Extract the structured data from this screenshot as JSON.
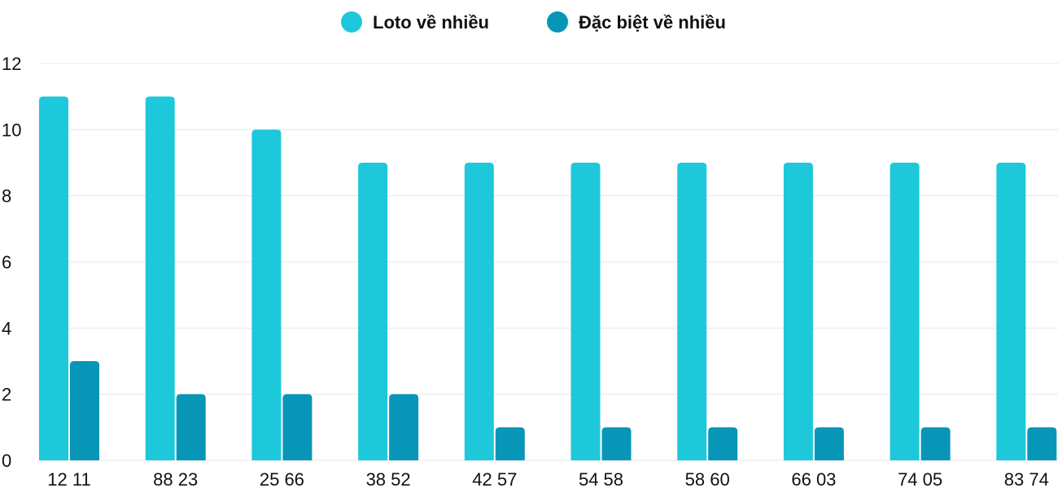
{
  "chart_data": {
    "type": "bar",
    "title": "",
    "xlabel": "",
    "ylabel": "",
    "categories": [
      "12 11",
      "88 23",
      "25 66",
      "38 52",
      "42 57",
      "54 58",
      "58 60",
      "66 03",
      "74 05",
      "83 74"
    ],
    "series": [
      {
        "name": "Loto về nhiều",
        "color": "#1dc8db",
        "values": [
          11,
          11,
          10,
          9,
          9,
          9,
          9,
          9,
          9,
          9
        ]
      },
      {
        "name": "Đặc biệt về nhiều",
        "color": "#0796b8",
        "values": [
          3,
          2,
          2,
          2,
          1,
          1,
          1,
          1,
          1,
          1
        ]
      }
    ],
    "ylim": [
      0,
      12
    ],
    "yticks": [
      0,
      2,
      4,
      6,
      8,
      10,
      12
    ],
    "grid": true,
    "legend_position": "top-center"
  }
}
